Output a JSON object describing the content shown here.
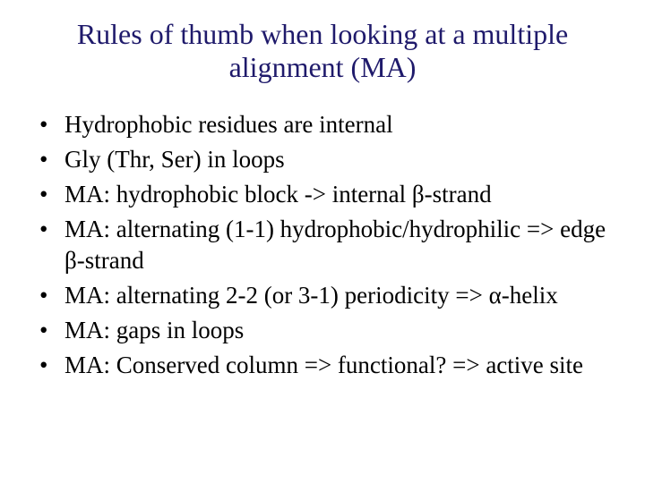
{
  "slide": {
    "title": "Rules of thumb when looking at a multiple alignment (MA)",
    "title_color": "#1f1a6b",
    "title_fontsize": 32,
    "body_fontsize": 27,
    "body_color": "#000000",
    "background_color": "#ffffff",
    "font_family": "Times New Roman",
    "bullets": [
      "Hydrophobic residues are internal",
      "Gly (Thr, Ser) in loops",
      "MA: hydrophobic block -> internal β-strand",
      "MA: alternating (1-1) hydrophobic/hydrophilic => edge β-strand",
      "MA: alternating 2-2 (or 3-1) periodicity => α-helix",
      "MA: gaps in loops",
      "MA: Conserved column => functional? => active site"
    ]
  }
}
